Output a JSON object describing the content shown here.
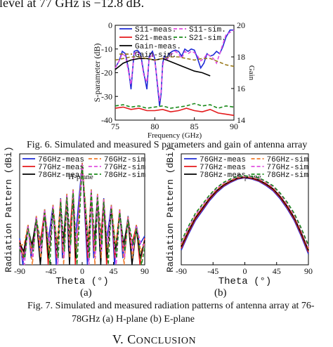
{
  "page": {
    "top_text": "level at 77 GHz is −12.8 dB.",
    "fig6_caption": "Fig. 6. Simulated and measured S parameters and gain of antenna array",
    "fig7_caption_line1": "Fig. 7. Simulated and measured radiation patterns of antenna array at 76-",
    "fig7_caption_line2": "78GHz (a) H-plane (b) E-plane",
    "section_numeral": "V.",
    "section_first": "C",
    "section_rest": "ONCLUSION",
    "subfig_a": "(a)",
    "subfig_b": "(b)"
  },
  "chart_data": [
    {
      "type": "line",
      "xlabel": "Frequency (GHz)",
      "ylabel": "S-parameter (dB)",
      "y2label": "Gain",
      "xlim": [
        75,
        90
      ],
      "ylim": [
        -40,
        0
      ],
      "y2lim": [
        14,
        20
      ],
      "xticks": [
        "75",
        "80",
        "85",
        "90"
      ],
      "yticks": [
        "0",
        "-10",
        "-20",
        "-30",
        "-40"
      ],
      "y2ticks": [
        "20",
        "18",
        "16",
        "14"
      ],
      "legend": [
        {
          "name": "S11-meas.",
          "color": "#1f2bd6",
          "dash": "solid"
        },
        {
          "name": "S11-sim.",
          "color": "#e04fe0",
          "dash": "dashed"
        },
        {
          "name": "S21-meas.",
          "color": "#e41a1c",
          "dash": "solid"
        },
        {
          "name": "S21-sim.",
          "color": "#1a8a1a",
          "dash": "dashed"
        },
        {
          "name": "Gain-meas.",
          "color": "#000000",
          "dash": "solid"
        },
        {
          "name": "Gain-sim.",
          "color": "#9a7a1a",
          "dash": "dashed"
        }
      ],
      "series": [
        {
          "name": "S11-meas.",
          "axis": "y",
          "color": "#1f2bd6",
          "dash": "solid",
          "x": [
            75,
            75.5,
            75.9,
            76.3,
            76.7,
            77,
            77.4,
            77.8,
            78.2,
            78.6,
            79,
            79.3,
            79.7,
            80,
            80.3,
            80.6,
            80.8,
            81,
            81.2,
            81.5,
            81.8,
            82.2,
            82.6,
            83,
            83.4,
            83.8,
            84.2,
            84.6,
            85,
            85.4,
            85.8,
            86.2,
            86.6,
            87,
            87.4,
            87.8,
            88.2,
            88.6,
            89,
            89.5,
            90
          ],
          "y": [
            -18,
            -15,
            -11,
            -12,
            -19,
            -27,
            -11,
            -10.5,
            -12,
            -20,
            -27,
            -13,
            -11,
            -14,
            -24,
            -34,
            -29,
            -16,
            -13,
            -14,
            -12,
            -11,
            -10.5,
            -11,
            -13,
            -10,
            -11,
            -10,
            -10.5,
            -14,
            -18,
            -16,
            -12,
            -13,
            -12.5,
            -11,
            -12,
            -9,
            -5,
            -2,
            -2
          ]
        },
        {
          "name": "S11-sim.",
          "axis": "y",
          "color": "#e04fe0",
          "dash": "dashed",
          "x": [
            75,
            75.5,
            75.9,
            76.3,
            76.7,
            77,
            77.4,
            77.8,
            78.2,
            78.6,
            79,
            79.3,
            79.7,
            80,
            80.3,
            80.6,
            80.8,
            81,
            81.2,
            81.5,
            81.8,
            82.2,
            82.6,
            83,
            83.4,
            83.8,
            84.2,
            84.6,
            85,
            85.4,
            85.8,
            86.2,
            86.6,
            87,
            87.4,
            87.8,
            88.2,
            88.6,
            89,
            89.5,
            90
          ],
          "y": [
            -18,
            -15,
            -12,
            -13,
            -20,
            -25,
            -12,
            -11,
            -13,
            -21,
            -24,
            -14,
            -12,
            -15,
            -23,
            -32,
            -28,
            -17,
            -14,
            -15,
            -13,
            -12,
            -11,
            -12,
            -14,
            -11,
            -12,
            -11,
            -11.5,
            -13,
            -15,
            -14,
            -12,
            -13,
            -14,
            -16,
            -12,
            -8,
            -4,
            -3,
            -2
          ]
        },
        {
          "name": "S21-meas.",
          "axis": "y",
          "color": "#e41a1c",
          "dash": "solid",
          "x": [
            75,
            76,
            77,
            78,
            79,
            80,
            81,
            82,
            83,
            84,
            85,
            86,
            87,
            88,
            89,
            90
          ],
          "y": [
            -35,
            -34.5,
            -35.5,
            -35,
            -36,
            -36,
            -35.5,
            -36.5,
            -36,
            -35,
            -36,
            -36.5,
            -35.5,
            -37,
            -37.5,
            -38
          ]
        },
        {
          "name": "S21-sim.",
          "axis": "y",
          "color": "#1a8a1a",
          "dash": "dashed",
          "x": [
            75,
            76,
            77,
            78,
            79,
            80,
            81,
            82,
            83,
            84,
            85,
            86,
            87,
            88,
            89,
            90
          ],
          "y": [
            -34,
            -33.5,
            -34.5,
            -34,
            -35,
            -34.5,
            -34,
            -35,
            -34.5,
            -34,
            -33,
            -34,
            -33.5,
            -35,
            -34,
            -34.5
          ]
        },
        {
          "name": "Gain-meas.",
          "axis": "y2",
          "color": "#000000",
          "dash": "solid",
          "x": [
            75,
            76,
            77,
            78,
            79,
            80,
            81,
            82,
            83,
            84,
            85,
            86,
            87
          ],
          "y": [
            17.2,
            17.6,
            17.8,
            17.9,
            17.9,
            17.8,
            17.9,
            17.7,
            17.5,
            17.3,
            17.1,
            17.0,
            16.8
          ]
        },
        {
          "name": "Gain-sim.",
          "axis": "y2",
          "color": "#9a7a1a",
          "dash": "dashed",
          "x": [
            75,
            76,
            77,
            78,
            79,
            80,
            81,
            82,
            83,
            84,
            85,
            86,
            87,
            88,
            89,
            90
          ],
          "y": [
            17.8,
            17.9,
            18.0,
            18.0,
            17.9,
            17.8,
            17.9,
            18.0,
            18.0,
            17.9,
            17.8,
            17.9,
            17.9,
            17.7,
            17.5,
            17.4
          ]
        }
      ]
    },
    {
      "type": "line",
      "title": "H-plane",
      "xlabel": "Theta (°)",
      "ylabel": "Radiation Pattern (dBi)",
      "xlim": [
        -90,
        90
      ],
      "xticks": [
        "-90",
        "-45",
        "0",
        "45",
        "90"
      ],
      "legend": [
        {
          "name": "76GHz-meas",
          "color": "#1f2bd6",
          "dash": "solid"
        },
        {
          "name": "77GHz-meas",
          "color": "#e41a1c",
          "dash": "solid"
        },
        {
          "name": "78GHz-meas",
          "color": "#000000",
          "dash": "solid"
        },
        {
          "name": "76GHz-sim",
          "color": "#f07a2a",
          "dash": "dashed"
        },
        {
          "name": "77GHz-sim",
          "color": "#e04fe0",
          "dash": "dashed"
        },
        {
          "name": "78GHz-sim",
          "color": "#1a8a1a",
          "dash": "dashed"
        }
      ],
      "lobe_nulls_deg": [
        -84,
        -72,
        -60,
        -48,
        -36,
        -27,
        -18,
        -9,
        9,
        18,
        27,
        36,
        48,
        60,
        72,
        84
      ],
      "lobe_peaks": [
        {
          "x": -78,
          "y": -12
        },
        {
          "x": -66,
          "y": -8
        },
        {
          "x": -54,
          "y": -5
        },
        {
          "x": -42,
          "y": -3
        },
        {
          "x": -31,
          "y": 0
        },
        {
          "x": -22,
          "y": 2
        },
        {
          "x": -13,
          "y": 4
        },
        {
          "x": 0,
          "y": 16
        },
        {
          "x": 13,
          "y": 4
        },
        {
          "x": 22,
          "y": 2
        },
        {
          "x": 31,
          "y": 0
        },
        {
          "x": 42,
          "y": -3
        },
        {
          "x": 54,
          "y": -5
        },
        {
          "x": 66,
          "y": -8
        },
        {
          "x": 78,
          "y": -12
        }
      ],
      "null_depth": -30
    },
    {
      "type": "line",
      "title": "E-plane",
      "xlabel": "Theta (°)",
      "ylabel": "Radiation Pattern (dBi)",
      "xlim": [
        -90,
        90
      ],
      "xticks": [
        "-90",
        "-45",
        "0",
        "45",
        "90"
      ],
      "legend": [
        {
          "name": "76GHz-meas",
          "color": "#1f2bd6",
          "dash": "solid"
        },
        {
          "name": "77GHz-meas",
          "color": "#e41a1c",
          "dash": "solid"
        },
        {
          "name": "78GHz-meas",
          "color": "#000000",
          "dash": "solid"
        },
        {
          "name": "76GHz-sim",
          "color": "#f07a2a",
          "dash": "dashed"
        },
        {
          "name": "77GHz-sim",
          "color": "#e04fe0",
          "dash": "dashed"
        },
        {
          "name": "78GHz-sim",
          "color": "#1a8a1a",
          "dash": "dashed"
        }
      ],
      "x": [
        -90,
        -80,
        -70,
        -60,
        -50,
        -40,
        -30,
        -20,
        -10,
        0,
        10,
        20,
        30,
        40,
        50,
        60,
        70,
        80,
        90
      ],
      "y": [
        -20,
        -12,
        -5,
        0,
        5,
        9,
        12,
        14,
        15.5,
        16,
        15.5,
        14.5,
        12.5,
        10,
        6,
        1,
        -5,
        -13,
        -22
      ]
    }
  ]
}
